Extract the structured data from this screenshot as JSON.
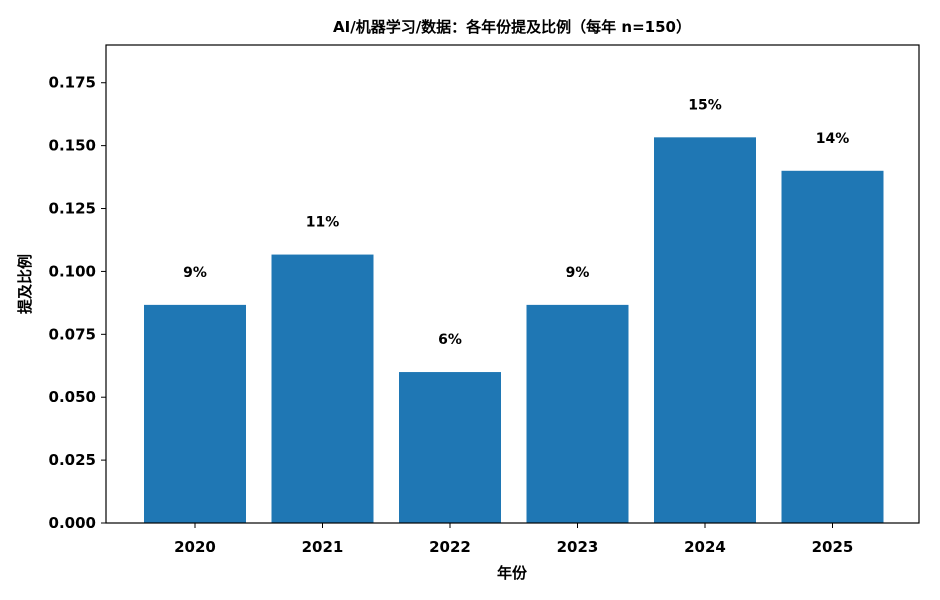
{
  "chart_data": {
    "type": "bar",
    "title": "AI/机器学习/数据：各年份提及比例（每年 n=150）",
    "xlabel": "年份",
    "ylabel": "提及比例",
    "categories": [
      "2020",
      "2021",
      "2022",
      "2023",
      "2024",
      "2025"
    ],
    "values": [
      0.0867,
      0.1067,
      0.06,
      0.0867,
      0.1533,
      0.14
    ],
    "data_labels": [
      "9%",
      "11%",
      "6%",
      "9%",
      "15%",
      "14%"
    ],
    "ylim": [
      0,
      0.19
    ],
    "yticks": [
      0.0,
      0.025,
      0.05,
      0.075,
      0.1,
      0.125,
      0.15,
      0.175
    ],
    "ytick_labels": [
      "0.000",
      "0.025",
      "0.050",
      "0.075",
      "0.100",
      "0.125",
      "0.150",
      "0.175"
    ],
    "grid": false,
    "bar_color": "#1f77b4"
  }
}
